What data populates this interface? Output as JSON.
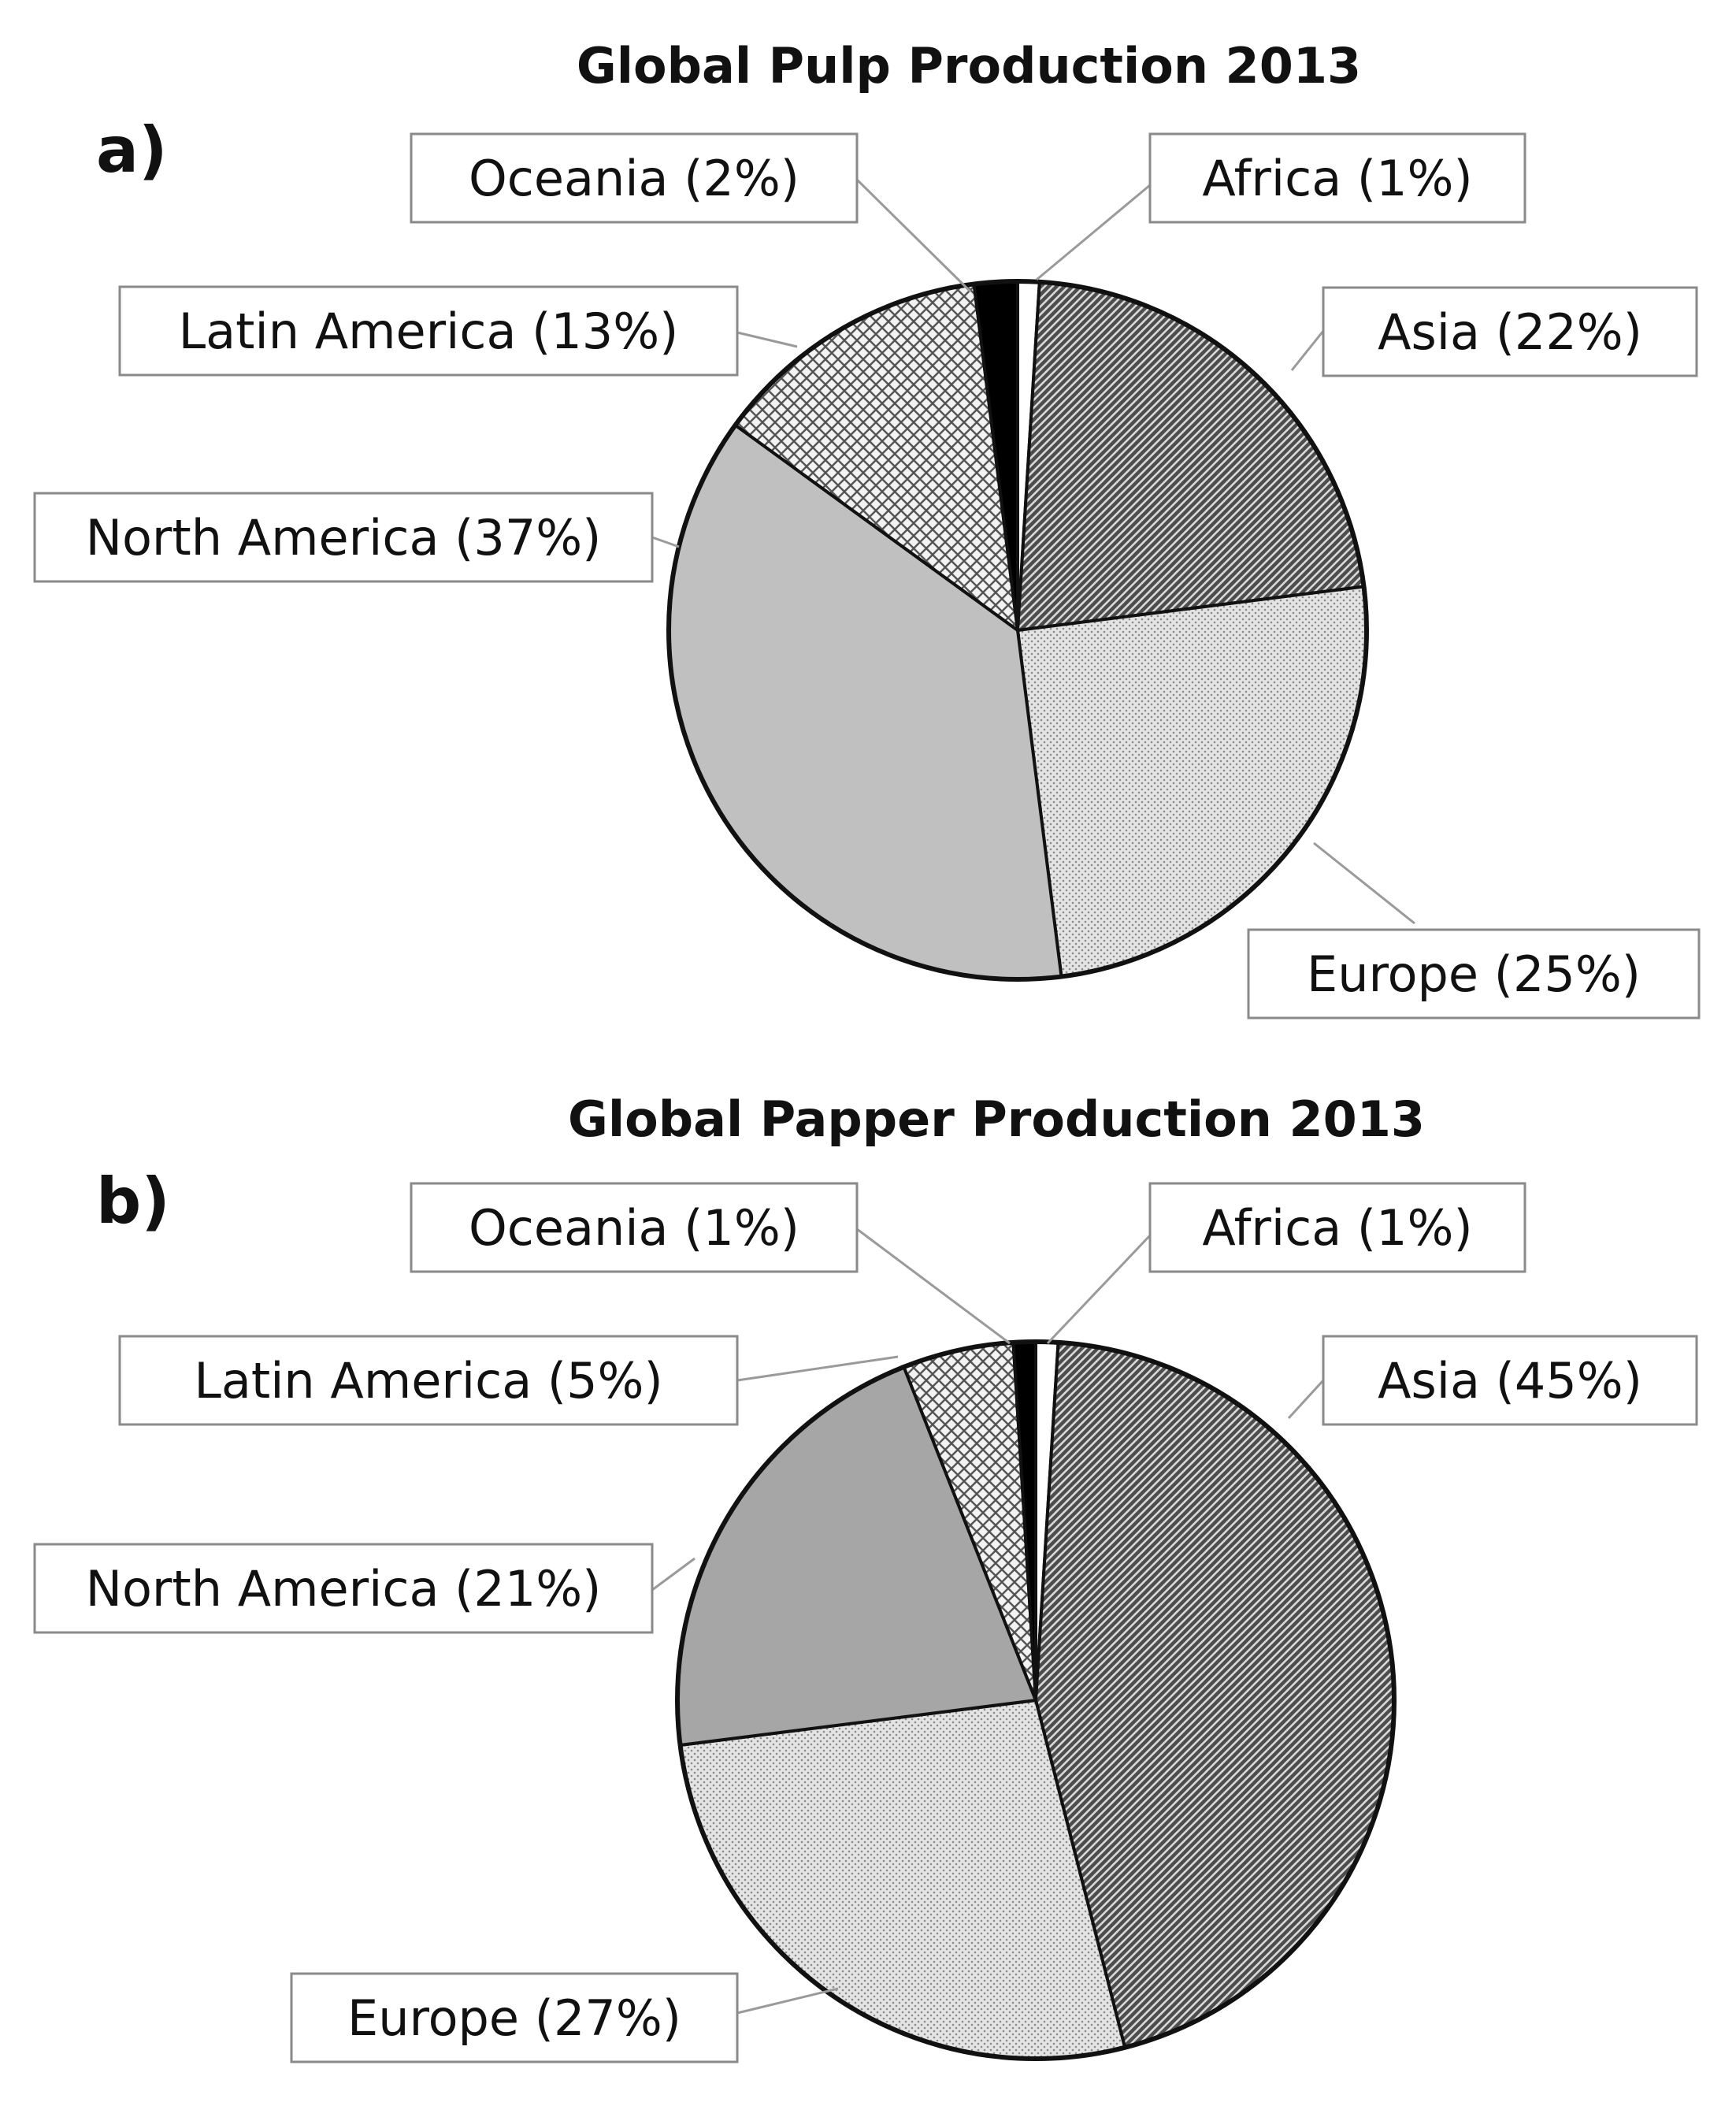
{
  "chart_data": [
    {
      "type": "pie",
      "panel": "a)",
      "title": "Global Pulp Production 2013",
      "slices": [
        {
          "name": "Africa",
          "value": 1,
          "label": "Africa (1%)",
          "pattern": "white"
        },
        {
          "name": "Asia",
          "value": 22,
          "label": "Asia (22%)",
          "pattern": "diagonal-hatch"
        },
        {
          "name": "Europe",
          "value": 25,
          "label": "Europe (25%)",
          "pattern": "fine-dots"
        },
        {
          "name": "North America",
          "value": 37,
          "label": "North America (37%)",
          "pattern": "solid-light-gray"
        },
        {
          "name": "Latin America",
          "value": 13,
          "label": "Latin America (13%)",
          "pattern": "cross-hatch"
        },
        {
          "name": "Oceania",
          "value": 2,
          "label": "Oceania (2%)",
          "pattern": "solid-black"
        }
      ]
    },
    {
      "type": "pie",
      "panel": "b)",
      "title": "Global Papper Production 2013",
      "slices": [
        {
          "name": "Africa",
          "value": 1,
          "label": "Africa (1%)",
          "pattern": "white"
        },
        {
          "name": "Asia",
          "value": 45,
          "label": "Asia (45%)",
          "pattern": "diagonal-hatch"
        },
        {
          "name": "Europe",
          "value": 27,
          "label": "Europe (27%)",
          "pattern": "fine-dots"
        },
        {
          "name": "North America",
          "value": 21,
          "label": "North America (21%)",
          "pattern": "solid-mid-gray"
        },
        {
          "name": "Latin America",
          "value": 5,
          "label": "Latin America (5%)",
          "pattern": "cross-hatch"
        },
        {
          "name": "Oceania",
          "value": 1,
          "label": "Oceania (1%)",
          "pattern": "solid-black"
        }
      ]
    }
  ],
  "colors": {
    "solid-light-gray": "#c0c0c0",
    "solid-mid-gray": "#a6a6a6",
    "solid-black": "#000000",
    "white": "#ffffff",
    "outline": "#111111",
    "leader": "#9a9a9a",
    "box-border": "#8a8a8a"
  }
}
